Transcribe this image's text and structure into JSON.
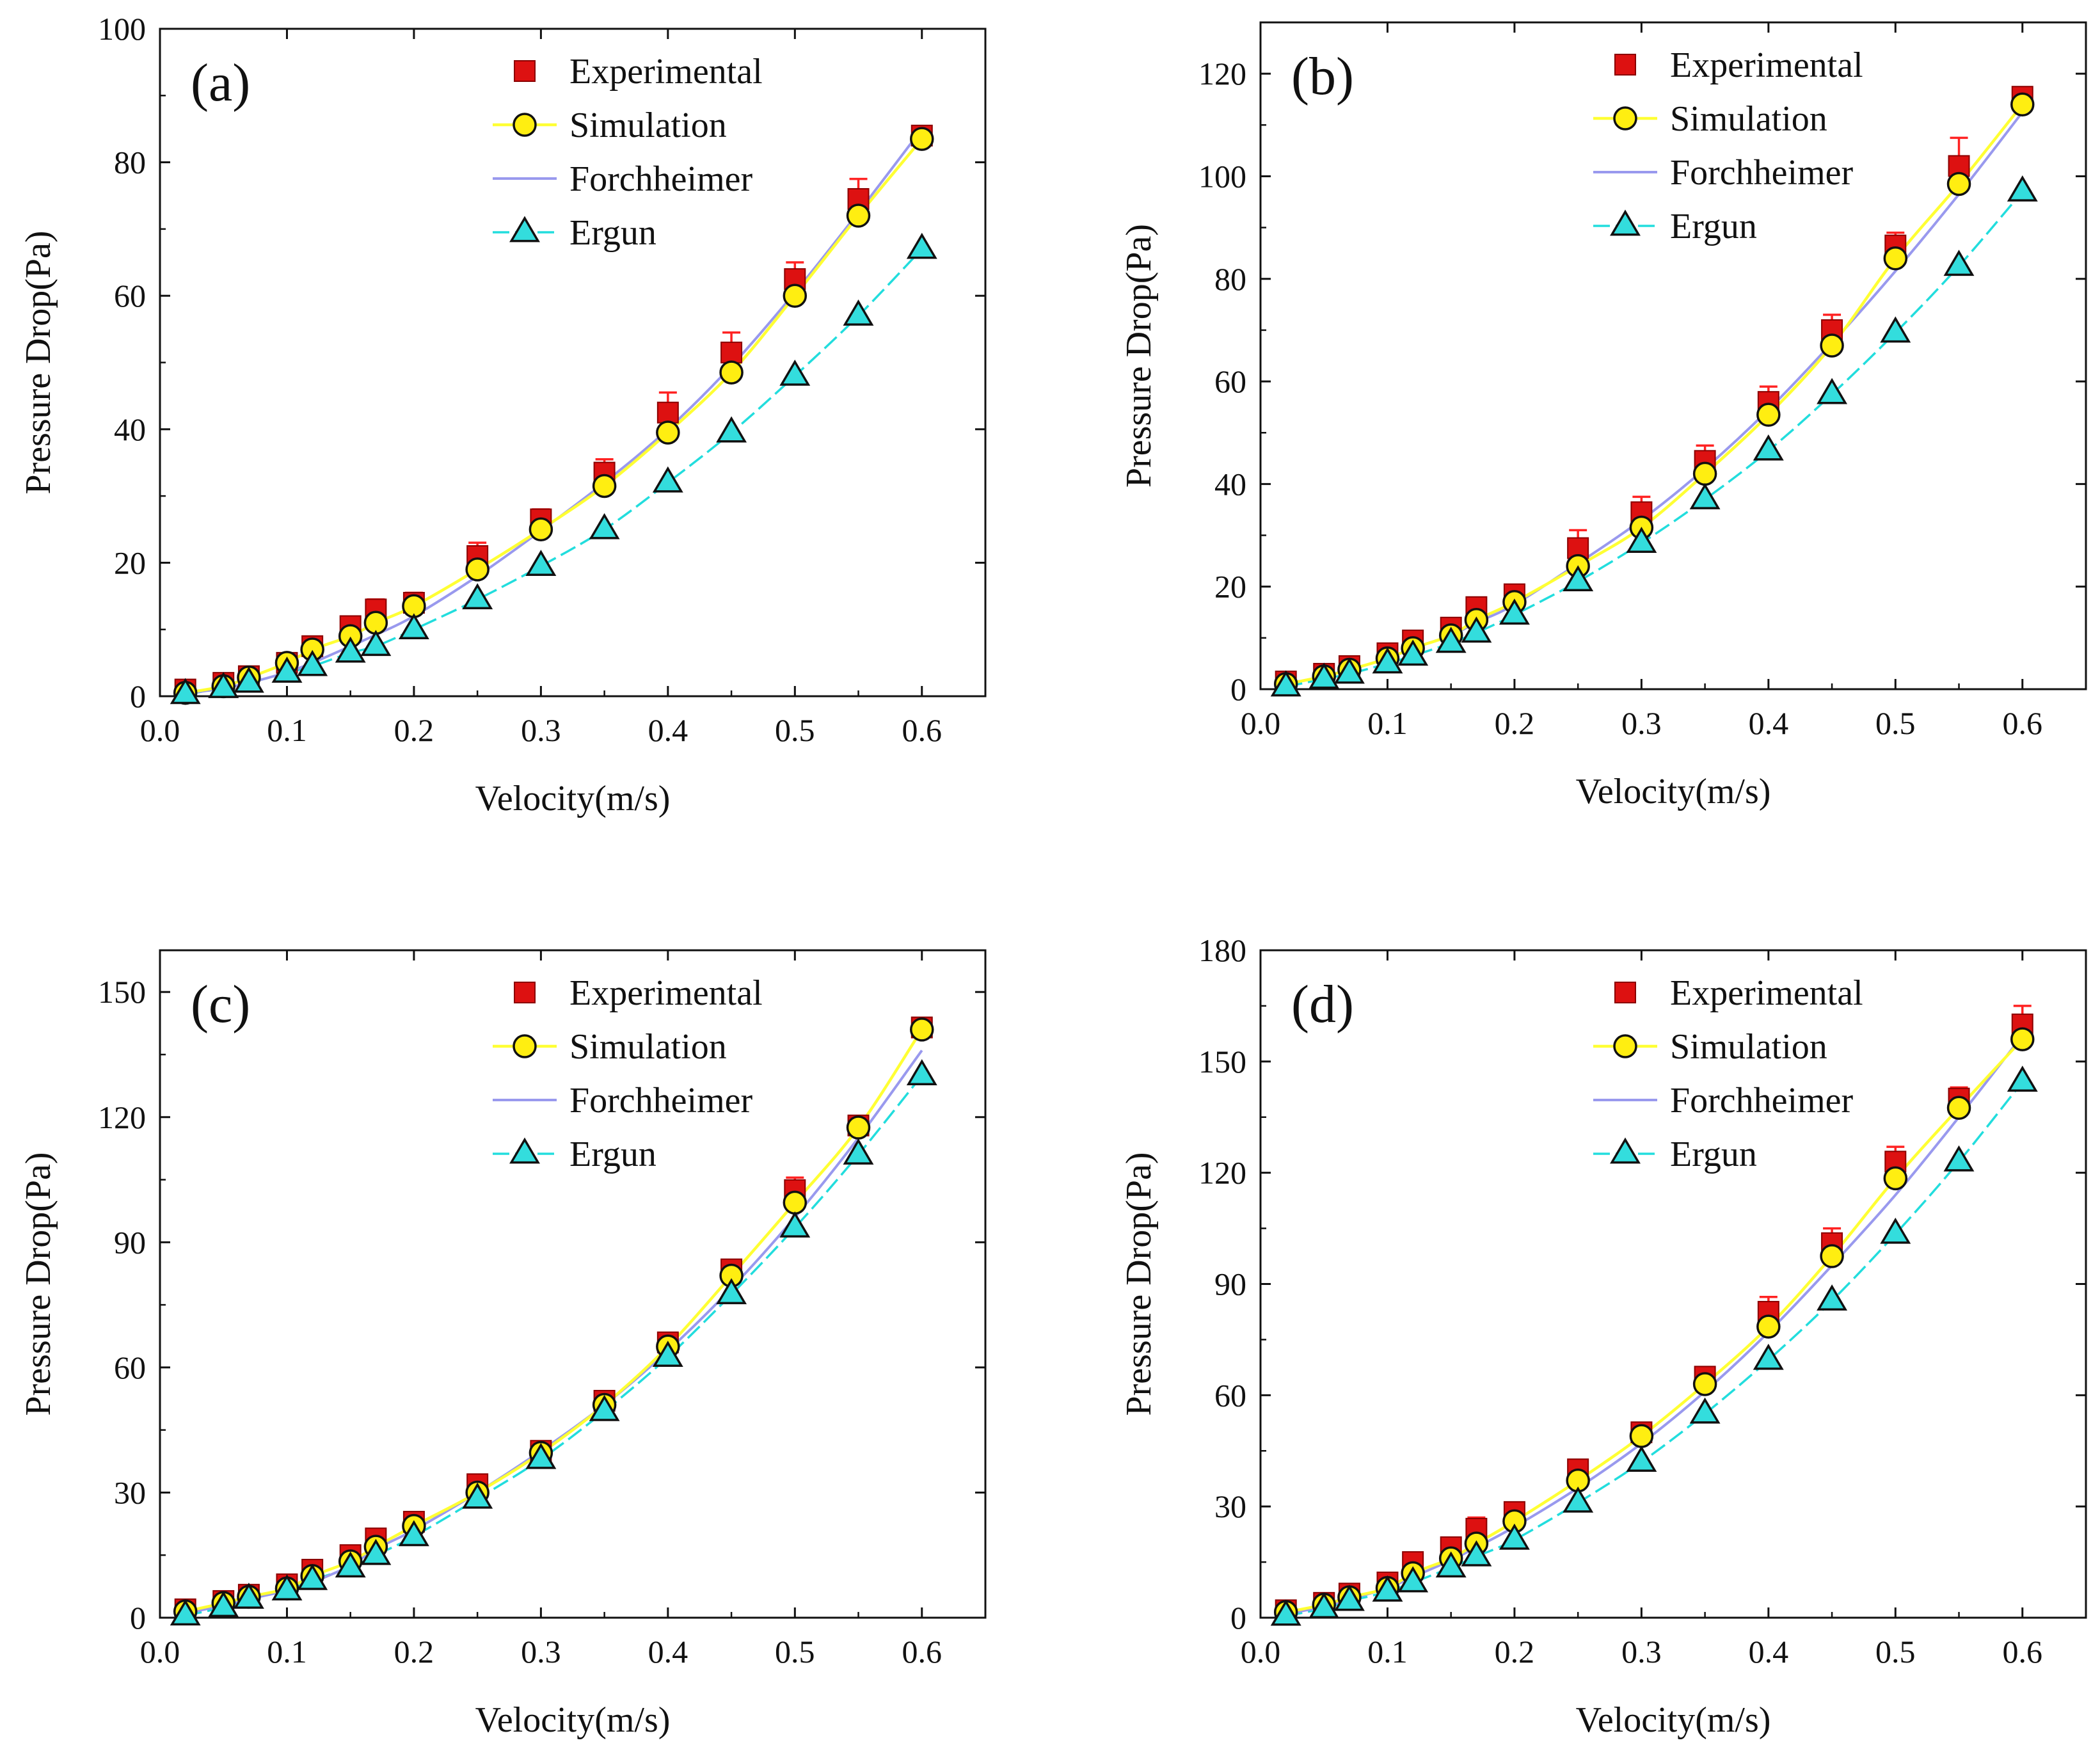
{
  "figure": {
    "legend_labels": [
      "Experimental",
      "Simulation",
      "Forchheimer",
      "Ergun"
    ],
    "colors": {
      "experimental_fill": "#dd1111",
      "experimental_error": "#ff2222",
      "simulation_line": "#ffff33",
      "simulation_fill": "#ffee11",
      "forchheimer_line": "#9999ee",
      "ergun_line": "#22dddd",
      "ergun_fill": "#33dddd"
    }
  },
  "chart_data": [
    {
      "type": "line",
      "panel": "(a)",
      "xlabel": "Velocity(m/s)",
      "ylabel": "Pressure Drop(Pa)",
      "xlim": [
        0.0,
        0.65
      ],
      "ylim": [
        0,
        100
      ],
      "xticks": [
        0.0,
        0.1,
        0.2,
        0.3,
        0.4,
        0.5,
        0.6
      ],
      "xtick_labels": [
        "0.0",
        "0.1",
        "0.2",
        "0.3",
        "0.4",
        "0.5",
        "0.6"
      ],
      "yticks": [
        0,
        20,
        40,
        60,
        80,
        100
      ],
      "ytick_labels": [
        "0",
        "20",
        "40",
        "60",
        "80",
        "100"
      ],
      "legend_position": "top-right",
      "x": [
        0.02,
        0.05,
        0.07,
        0.1,
        0.12,
        0.15,
        0.17,
        0.2,
        0.25,
        0.3,
        0.35,
        0.4,
        0.45,
        0.5,
        0.55,
        0.6
      ],
      "series": [
        {
          "name": "Experimental",
          "values": [
            1.0,
            2.0,
            3.0,
            5.0,
            7.5,
            10.5,
            13.0,
            14.0,
            21.0,
            26.5,
            33.5,
            42.5,
            51.5,
            62.5,
            74.5,
            84.0
          ],
          "errors": [
            0.5,
            0.5,
            0.5,
            0.8,
            1.0,
            1.0,
            1.5,
            1.5,
            2.0,
            1.5,
            2.0,
            3.0,
            3.0,
            2.5,
            3.0,
            0.5
          ]
        },
        {
          "name": "Simulation",
          "values": [
            0.5,
            1.5,
            2.8,
            5.0,
            7.0,
            9.0,
            11.0,
            13.5,
            19.0,
            25.0,
            31.5,
            39.5,
            48.5,
            60.0,
            72.0,
            83.5
          ]
        },
        {
          "name": "Forchheimer",
          "values": [
            0.4,
            1.2,
            2.0,
            3.6,
            5.0,
            7.5,
            9.2,
            12.0,
            18.0,
            24.8,
            32.0,
            40.0,
            49.5,
            60.5,
            72.5,
            85.0
          ]
        },
        {
          "name": "Ergun",
          "values": [
            0.3,
            1.2,
            2.0,
            3.5,
            4.5,
            6.5,
            7.5,
            10.0,
            14.5,
            19.5,
            25.0,
            32.0,
            39.5,
            48.0,
            57.0,
            67.0
          ]
        }
      ]
    },
    {
      "type": "line",
      "panel": "(b)",
      "xlabel": "Velocity(m/s)",
      "ylabel": "Pressure Drop(Pa)",
      "xlim": [
        0.0,
        0.65
      ],
      "ylim": [
        0,
        130
      ],
      "xticks": [
        0.0,
        0.1,
        0.2,
        0.3,
        0.4,
        0.5,
        0.6
      ],
      "xtick_labels": [
        "0.0",
        "0.1",
        "0.2",
        "0.3",
        "0.4",
        "0.5",
        "0.6"
      ],
      "yticks": [
        0,
        20,
        40,
        60,
        80,
        100,
        120
      ],
      "ytick_labels": [
        "0",
        "20",
        "40",
        "60",
        "80",
        "100",
        "120"
      ],
      "legend_position": "top-right",
      "x": [
        0.02,
        0.05,
        0.07,
        0.1,
        0.12,
        0.15,
        0.17,
        0.2,
        0.25,
        0.3,
        0.35,
        0.4,
        0.45,
        0.5,
        0.55,
        0.6
      ],
      "series": [
        {
          "name": "Experimental",
          "values": [
            1.5,
            3.0,
            4.5,
            7.0,
            9.5,
            12.0,
            16.0,
            18.5,
            27.5,
            34.5,
            44.5,
            56.0,
            70.0,
            86.5,
            102.0,
            115.5
          ],
          "errors": [
            0.5,
            0.5,
            0.5,
            1.0,
            1.0,
            1.0,
            1.5,
            1.5,
            3.5,
            3.0,
            3.0,
            3.0,
            3.0,
            2.5,
            5.5,
            1.0
          ]
        },
        {
          "name": "Simulation",
          "values": [
            1.0,
            2.5,
            3.8,
            6.0,
            8.0,
            10.5,
            13.5,
            17.0,
            24.0,
            31.5,
            42.0,
            53.5,
            67.0,
            84.0,
            98.5,
            114.0
          ]
        },
        {
          "name": "Forchheimer",
          "values": [
            1.0,
            2.5,
            3.8,
            6.0,
            8.0,
            10.5,
            13.0,
            16.5,
            24.5,
            33.0,
            43.0,
            54.5,
            67.5,
            81.5,
            96.5,
            112.5
          ]
        },
        {
          "name": "Ergun",
          "values": [
            0.5,
            2.0,
            3.0,
            5.0,
            6.5,
            9.0,
            11.0,
            14.5,
            21.0,
            28.5,
            37.0,
            46.5,
            57.5,
            69.5,
            82.5,
            97.0
          ]
        }
      ]
    },
    {
      "type": "line",
      "panel": "(c)",
      "xlabel": "Velocity(m/s)",
      "ylabel": "Pressure Drop(Pa)",
      "xlim": [
        0.0,
        0.65
      ],
      "ylim": [
        0,
        160
      ],
      "xticks": [
        0.0,
        0.1,
        0.2,
        0.3,
        0.4,
        0.5,
        0.6
      ],
      "xtick_labels": [
        "0.0",
        "0.1",
        "0.2",
        "0.3",
        "0.4",
        "0.5",
        "0.6"
      ],
      "yticks": [
        0,
        30,
        60,
        90,
        120,
        150
      ],
      "ytick_labels": [
        "0",
        "30",
        "60",
        "90",
        "120",
        "150"
      ],
      "legend_position": "top-right",
      "x": [
        0.02,
        0.05,
        0.07,
        0.1,
        0.12,
        0.15,
        0.17,
        0.2,
        0.25,
        0.3,
        0.35,
        0.4,
        0.45,
        0.5,
        0.55,
        0.6
      ],
      "series": [
        {
          "name": "Experimental",
          "values": [
            2.0,
            4.0,
            5.5,
            8.0,
            11.5,
            15.0,
            19.0,
            23.0,
            32.0,
            40.0,
            52.0,
            66.0,
            83.5,
            102.5,
            118.0,
            141.5
          ],
          "errors": [
            0.5,
            0.5,
            0.5,
            0.8,
            1.0,
            1.0,
            1.0,
            1.0,
            1.0,
            1.0,
            1.0,
            1.0,
            1.5,
            3.0,
            1.0,
            0.8
          ]
        },
        {
          "name": "Simulation",
          "values": [
            1.5,
            3.5,
            5.0,
            7.0,
            10.0,
            13.5,
            17.0,
            22.0,
            30.0,
            39.5,
            51.0,
            65.0,
            82.0,
            99.5,
            117.5,
            141.0
          ]
        },
        {
          "name": "Forchheimer",
          "values": [
            1.0,
            3.0,
            4.5,
            6.5,
            8.5,
            12.5,
            16.5,
            21.0,
            30.0,
            40.0,
            51.0,
            64.0,
            79.0,
            96.0,
            115.0,
            136.0
          ]
        },
        {
          "name": "Ergun",
          "values": [
            0.5,
            2.5,
            4.5,
            6.5,
            9.0,
            12.0,
            15.0,
            19.5,
            28.5,
            38.0,
            49.5,
            62.5,
            77.5,
            93.5,
            111.0,
            130.0
          ]
        }
      ]
    },
    {
      "type": "line",
      "panel": "(d)",
      "xlabel": "Velocity(m/s)",
      "ylabel": "Pressure Drop(Pa)",
      "xlim": [
        0.0,
        0.65
      ],
      "ylim": [
        0,
        180
      ],
      "xticks": [
        0.0,
        0.1,
        0.2,
        0.3,
        0.4,
        0.5,
        0.6
      ],
      "xtick_labels": [
        "0.0",
        "0.1",
        "0.2",
        "0.3",
        "0.4",
        "0.5",
        "0.6"
      ],
      "yticks": [
        0,
        30,
        60,
        90,
        120,
        150,
        180
      ],
      "ytick_labels": [
        "0",
        "30",
        "60",
        "90",
        "120",
        "150",
        "180"
      ],
      "legend_position": "top-right",
      "x": [
        0.02,
        0.05,
        0.07,
        0.1,
        0.12,
        0.15,
        0.17,
        0.2,
        0.25,
        0.3,
        0.35,
        0.4,
        0.45,
        0.5,
        0.55,
        0.6
      ],
      "series": [
        {
          "name": "Experimental",
          "values": [
            2.0,
            4.0,
            6.5,
            9.5,
            15.0,
            19.0,
            24.0,
            28.5,
            40.0,
            50.0,
            65.0,
            82.5,
            101.0,
            123.0,
            140.0,
            160.0
          ],
          "errors": [
            0.5,
            0.5,
            0.5,
            1.0,
            1.0,
            1.5,
            3.0,
            1.5,
            2.0,
            1.0,
            1.0,
            4.0,
            4.0,
            4.0,
            3.0,
            5.0
          ]
        },
        {
          "name": "Simulation",
          "values": [
            1.5,
            3.5,
            5.5,
            8.0,
            12.0,
            16.0,
            20.0,
            26.0,
            37.0,
            49.0,
            63.0,
            78.5,
            97.5,
            118.5,
            137.5,
            156.0
          ]
        },
        {
          "name": "Forchheimer",
          "values": [
            1.0,
            3.0,
            5.0,
            8.0,
            11.0,
            15.5,
            19.0,
            24.5,
            35.0,
            47.0,
            61.0,
            77.0,
            95.0,
            114.0,
            135.0,
            157.0
          ]
        },
        {
          "name": "Ergun",
          "values": [
            0.5,
            2.5,
            4.5,
            7.0,
            9.5,
            13.5,
            16.5,
            21.0,
            31.0,
            42.0,
            55.0,
            69.5,
            85.5,
            103.5,
            123.0,
            144.5
          ]
        }
      ]
    }
  ]
}
